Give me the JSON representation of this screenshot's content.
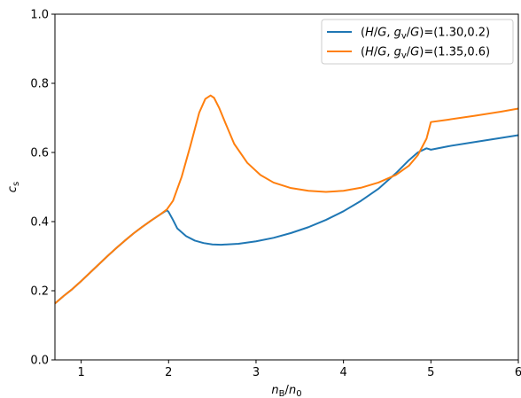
{
  "chart_data": {
    "type": "line",
    "xlabel": "n_B/n_0",
    "ylabel": "c_s",
    "xlim": [
      0.7,
      6.0
    ],
    "ylim": [
      0.0,
      1.0
    ],
    "xticks": [
      1,
      2,
      3,
      4,
      5,
      6
    ],
    "yticks": [
      0.0,
      0.2,
      0.4,
      0.6,
      0.8,
      1.0
    ],
    "grid": false,
    "legend_position": "top-right",
    "series": [
      {
        "name": "(H/G, g_v/G)=(1.30,0.2)",
        "color": "#1f77b4",
        "x": [
          0.7,
          0.8,
          0.9,
          1.0,
          1.1,
          1.2,
          1.3,
          1.4,
          1.5,
          1.6,
          1.7,
          1.8,
          1.9,
          1.98,
          2.0,
          2.05,
          2.1,
          2.2,
          2.3,
          2.4,
          2.5,
          2.6,
          2.8,
          3.0,
          3.2,
          3.4,
          3.6,
          3.8,
          4.0,
          4.2,
          4.4,
          4.6,
          4.75,
          4.85,
          4.95,
          5.0,
          5.2,
          5.5,
          5.8,
          6.0
        ],
        "y": [
          0.163,
          0.185,
          0.205,
          0.228,
          0.252,
          0.276,
          0.3,
          0.323,
          0.345,
          0.366,
          0.385,
          0.403,
          0.42,
          0.433,
          0.428,
          0.405,
          0.38,
          0.358,
          0.345,
          0.338,
          0.334,
          0.333,
          0.336,
          0.343,
          0.353,
          0.367,
          0.384,
          0.405,
          0.43,
          0.46,
          0.495,
          0.54,
          0.578,
          0.6,
          0.612,
          0.608,
          0.618,
          0.63,
          0.642,
          0.65
        ]
      },
      {
        "name": "(H/G, g_v/G)=(1.35,0.6)",
        "color": "#ff7f0e",
        "x": [
          0.7,
          0.8,
          0.9,
          1.0,
          1.1,
          1.2,
          1.3,
          1.4,
          1.5,
          1.6,
          1.7,
          1.8,
          1.9,
          1.98,
          2.05,
          2.15,
          2.25,
          2.35,
          2.42,
          2.48,
          2.52,
          2.58,
          2.65,
          2.75,
          2.9,
          3.05,
          3.2,
          3.4,
          3.6,
          3.8,
          4.0,
          4.2,
          4.4,
          4.6,
          4.75,
          4.85,
          4.95,
          5.0,
          5.2,
          5.5,
          5.8,
          6.0
        ],
        "y": [
          0.163,
          0.185,
          0.205,
          0.228,
          0.252,
          0.276,
          0.3,
          0.323,
          0.345,
          0.366,
          0.385,
          0.403,
          0.42,
          0.435,
          0.46,
          0.53,
          0.62,
          0.715,
          0.755,
          0.765,
          0.758,
          0.728,
          0.685,
          0.625,
          0.57,
          0.535,
          0.513,
          0.497,
          0.489,
          0.486,
          0.489,
          0.498,
          0.513,
          0.535,
          0.562,
          0.592,
          0.64,
          0.688,
          0.695,
          0.706,
          0.718,
          0.727
        ]
      }
    ]
  }
}
